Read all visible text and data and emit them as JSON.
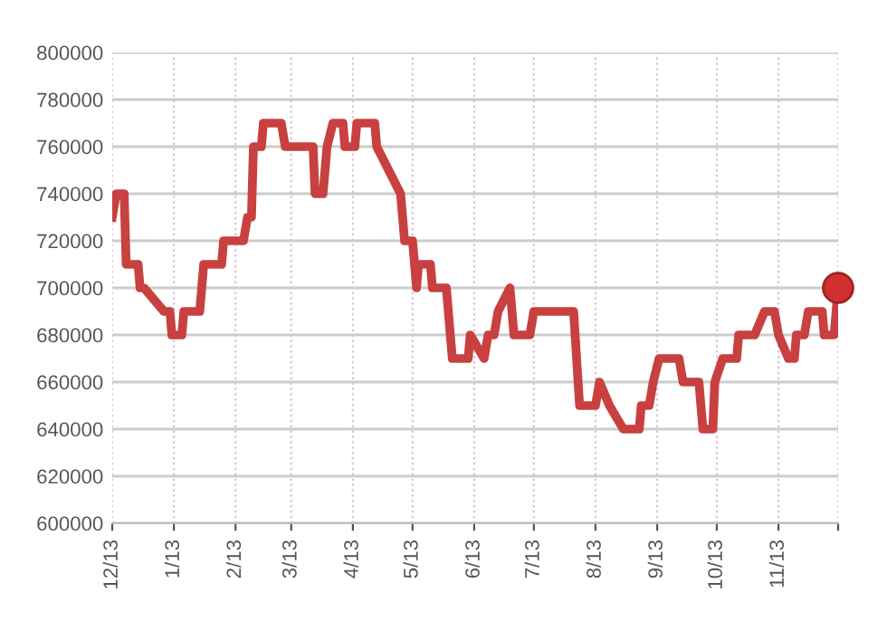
{
  "chart_data": {
    "type": "line",
    "grid": true,
    "marker": "none",
    "line_style": "solid",
    "xlim": [
      "2012-12-01",
      "2013-12-01"
    ],
    "ylim": [
      600000,
      800000
    ],
    "xticks": [
      {
        "value": "2012-12-01",
        "label": "12/13"
      },
      {
        "value": "2013-01-01",
        "label": "1/13"
      },
      {
        "value": "2013-02-01",
        "label": "2/13"
      },
      {
        "value": "2013-03-01",
        "label": "3/13"
      },
      {
        "value": "2013-04-01",
        "label": "4/13"
      },
      {
        "value": "2013-05-01",
        "label": "5/13"
      },
      {
        "value": "2013-06-01",
        "label": "6/13"
      },
      {
        "value": "2013-07-01",
        "label": "7/13"
      },
      {
        "value": "2013-08-01",
        "label": "8/13"
      },
      {
        "value": "2013-09-01",
        "label": "9/13"
      },
      {
        "value": "2013-10-01",
        "label": "10/13"
      },
      {
        "value": "2013-11-01",
        "label": "11/13"
      },
      {
        "value": "2013-12-01",
        "label": null
      }
    ],
    "yticks": [
      600000,
      620000,
      640000,
      660000,
      680000,
      700000,
      720000,
      740000,
      760000,
      780000,
      800000
    ],
    "series": [
      {
        "color": "#c84040",
        "x": [
          "2012-12-01",
          "2012-12-03",
          "2012-12-07",
          "2012-12-08",
          "2012-12-14",
          "2012-12-15",
          "2012-12-17",
          "2012-12-27",
          "2012-12-30",
          "2012-12-31",
          "2013-01-05",
          "2013-01-06",
          "2013-01-14",
          "2013-01-16",
          "2013-01-25",
          "2013-01-26",
          "2013-02-05",
          "2013-02-07",
          "2013-02-09",
          "2013-02-10",
          "2013-02-14",
          "2013-02-15",
          "2013-02-24",
          "2013-02-26",
          "2013-03-12",
          "2013-03-13",
          "2013-03-17",
          "2013-03-19",
          "2013-03-22",
          "2013-03-27",
          "2013-03-28",
          "2013-04-02",
          "2013-04-03",
          "2013-04-12",
          "2013-04-13",
          "2013-04-25",
          "2013-04-27",
          "2013-05-01",
          "2013-05-03",
          "2013-05-04",
          "2013-05-10",
          "2013-05-11",
          "2013-05-18",
          "2013-05-21",
          "2013-05-29",
          "2013-05-30",
          "2013-06-06",
          "2013-06-08",
          "2013-06-11",
          "2013-06-13",
          "2013-06-19",
          "2013-06-21",
          "2013-06-29",
          "2013-07-01",
          "2013-07-21",
          "2013-07-24",
          "2013-08-01",
          "2013-08-03",
          "2013-08-08",
          "2013-08-15",
          "2013-08-23",
          "2013-08-24",
          "2013-08-28",
          "2013-08-30",
          "2013-09-02",
          "2013-09-12",
          "2013-09-14",
          "2013-09-22",
          "2013-09-24",
          "2013-09-29",
          "2013-09-30",
          "2013-10-04",
          "2013-10-11",
          "2013-10-12",
          "2013-10-20",
          "2013-10-25",
          "2013-10-30",
          "2013-11-01",
          "2013-11-06",
          "2013-11-09",
          "2013-11-10",
          "2013-11-14",
          "2013-11-16",
          "2013-11-23",
          "2013-11-24",
          "2013-11-29",
          "2013-12-01"
        ],
        "values": [
          730000,
          740000,
          740000,
          710000,
          710000,
          700000,
          700000,
          690000,
          690000,
          680000,
          680000,
          690000,
          690000,
          710000,
          710000,
          720000,
          720000,
          730000,
          730000,
          760000,
          760000,
          770000,
          770000,
          760000,
          760000,
          740000,
          740000,
          760000,
          770000,
          770000,
          760000,
          760000,
          770000,
          770000,
          760000,
          740000,
          720000,
          720000,
          700000,
          710000,
          710000,
          700000,
          700000,
          670000,
          670000,
          680000,
          670000,
          680000,
          680000,
          690000,
          700000,
          680000,
          680000,
          690000,
          690000,
          650000,
          650000,
          660000,
          650000,
          640000,
          640000,
          650000,
          650000,
          660000,
          670000,
          670000,
          660000,
          660000,
          640000,
          640000,
          660000,
          670000,
          670000,
          680000,
          680000,
          690000,
          690000,
          680000,
          670000,
          670000,
          680000,
          680000,
          690000,
          690000,
          680000,
          680000,
          700000
        ]
      },
      {
        "type": "scatter",
        "marker": "circle",
        "color": "#d03030",
        "x": [
          "2013-12-01"
        ],
        "values": [
          700000
        ]
      }
    ]
  }
}
